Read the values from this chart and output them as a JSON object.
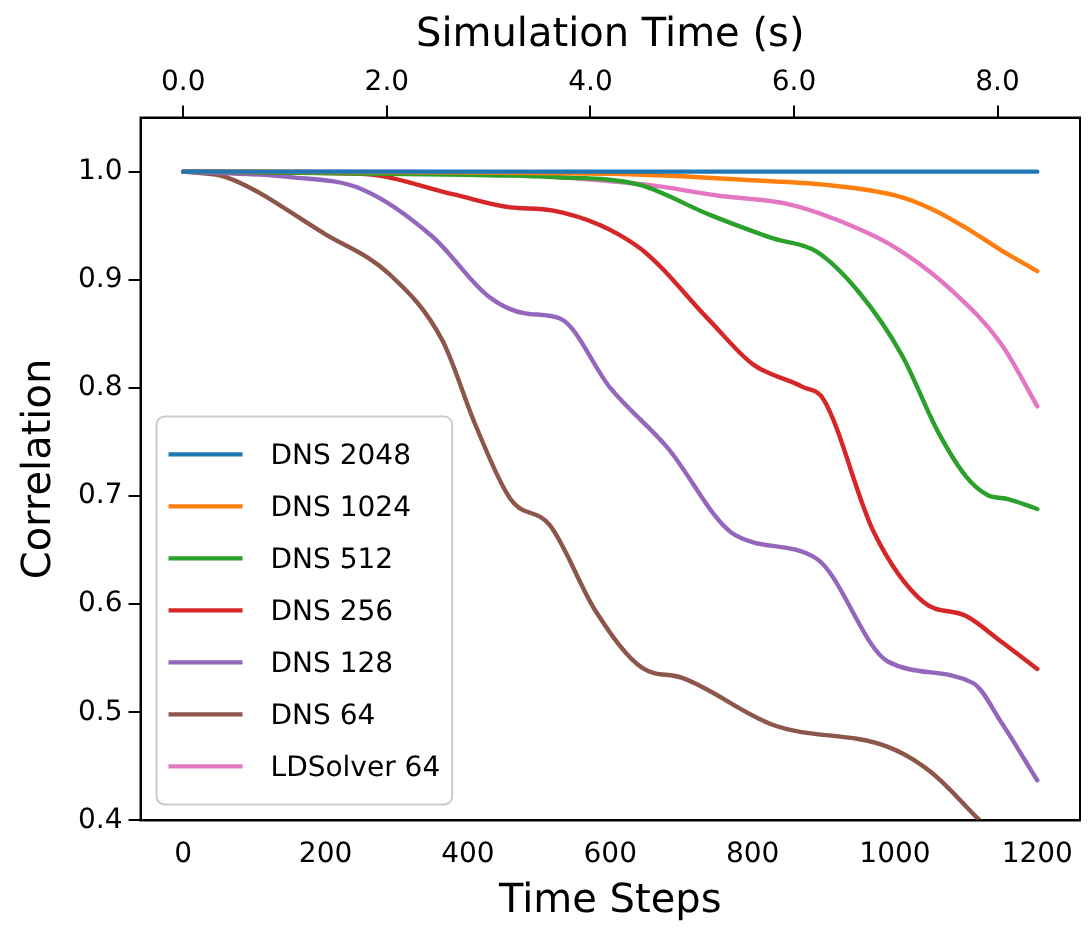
{
  "chart_data": {
    "type": "line",
    "xlabel": "Time Steps",
    "ylabel": "Correlation",
    "x2label": "Simulation Time (s)",
    "xlim": [
      -60,
      1260
    ],
    "xticks": [
      0,
      200,
      400,
      600,
      800,
      1000,
      1200
    ],
    "x2lim": [
      -0.42,
      8.81
    ],
    "x2ticks": [
      {
        "value": 0,
        "label": "0.0"
      },
      {
        "value": 2,
        "label": "2.0"
      },
      {
        "value": 4,
        "label": "4.0"
      },
      {
        "value": 6,
        "label": "6.0"
      },
      {
        "value": 8,
        "label": "8.0"
      }
    ],
    "ylim": [
      0.4,
      1.05
    ],
    "yticks": [
      {
        "value": 0.4,
        "label": "0.4"
      },
      {
        "value": 0.5,
        "label": "0.5"
      },
      {
        "value": 0.6,
        "label": "0.6"
      },
      {
        "value": 0.7,
        "label": "0.7"
      },
      {
        "value": 0.8,
        "label": "0.8"
      },
      {
        "value": 0.9,
        "label": "0.9"
      },
      {
        "value": 1.0,
        "label": "1.0"
      }
    ],
    "grid": false,
    "legend": "bottom left",
    "marker": "none",
    "line_style": "solid",
    "series": [
      {
        "name": "DNS 2048",
        "color": "#1f77b4",
        "x": [
          0,
          1200
        ],
        "values": [
          1.0,
          1.0
        ]
      },
      {
        "name": "DNS 1024",
        "color": "#ff7f0e",
        "x": [
          0,
          600,
          800,
          900,
          1000,
          1050,
          1100,
          1150,
          1200
        ],
        "values": [
          1.0,
          0.998,
          0.992,
          0.988,
          0.978,
          0.966,
          0.948,
          0.927,
          0.908
        ]
      },
      {
        "name": "DNS 512",
        "color": "#2ca02c",
        "x": [
          0,
          400,
          520,
          640,
          740,
          830,
          890,
          950,
          1010,
          1060,
          1100,
          1130,
          1160,
          1200
        ],
        "values": [
          1.0,
          0.997,
          0.995,
          0.988,
          0.96,
          0.938,
          0.926,
          0.888,
          0.83,
          0.76,
          0.718,
          0.701,
          0.697,
          0.688
        ]
      },
      {
        "name": "DNS 256",
        "color": "#d62728",
        "x": [
          0,
          250,
          380,
          460,
          520,
          640,
          740,
          800,
          870,
          900,
          970,
          1040,
          1100,
          1150,
          1200
        ],
        "values": [
          1.0,
          0.998,
          0.979,
          0.967,
          0.964,
          0.93,
          0.862,
          0.822,
          0.801,
          0.789,
          0.667,
          0.602,
          0.589,
          0.565,
          0.54
        ]
      },
      {
        "name": "DNS 128",
        "color": "#9467bd",
        "x": [
          0,
          150,
          250,
          350,
          430,
          480,
          530,
          600,
          680,
          775,
          890,
          990,
          1110,
          1150,
          1200
        ],
        "values": [
          1.0,
          0.995,
          0.984,
          0.94,
          0.884,
          0.869,
          0.864,
          0.8,
          0.745,
          0.664,
          0.642,
          0.547,
          0.527,
          0.49,
          0.437
        ]
      },
      {
        "name": "DNS 64",
        "color": "#8c564b",
        "x": [
          0,
          60,
          200,
          290,
          364,
          411,
          460,
          515,
          580,
          645,
          700,
          830,
          990,
          1050,
          1119
        ],
        "values": [
          1.0,
          0.995,
          0.942,
          0.905,
          0.844,
          0.765,
          0.697,
          0.673,
          0.593,
          0.541,
          0.532,
          0.488,
          0.468,
          0.445,
          0.4
        ]
      },
      {
        "name": "LDSolver 64",
        "color": "#e377c2",
        "x": [
          0,
          300,
          650,
          750,
          850,
          920,
          1000,
          1080,
          1150,
          1200
        ],
        "values": [
          1.0,
          1.0,
          0.988,
          0.978,
          0.97,
          0.955,
          0.93,
          0.89,
          0.84,
          0.783
        ]
      }
    ]
  }
}
